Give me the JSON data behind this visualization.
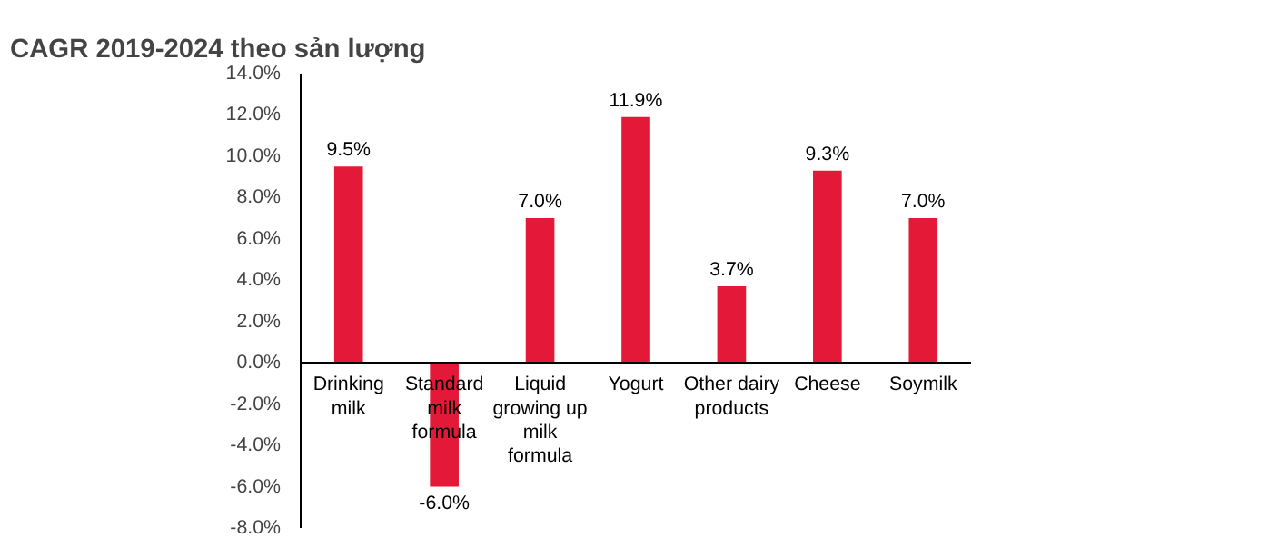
{
  "chart_data": {
    "type": "bar",
    "title": "CAGR 2019-2024 theo sản lượng",
    "categories": [
      "Drinking milk",
      "Standard milk formula",
      "Liquid growing up milk formula",
      "Yogurt",
      "Other dairy products",
      "Cheese",
      "Soymilk"
    ],
    "values": [
      9.5,
      -6.0,
      7.0,
      11.9,
      3.7,
      9.3,
      7.0
    ],
    "value_labels": [
      "9.5%",
      "-6.0%",
      "7.0%",
      "11.9%",
      "3.7%",
      "9.3%",
      "7.0%"
    ],
    "color": "#e31937",
    "ylim": [
      -8,
      14
    ],
    "yticks": [
      {
        "value": 14,
        "label": "14.0%"
      },
      {
        "value": 12,
        "label": "12.0%"
      },
      {
        "value": 10,
        "label": "10.0%"
      },
      {
        "value": 8,
        "label": "8.0%"
      },
      {
        "value": 6,
        "label": "6.0%"
      },
      {
        "value": 4,
        "label": "4.0%"
      },
      {
        "value": 2,
        "label": "2.0%"
      },
      {
        "value": 0,
        "label": "0.0%"
      },
      {
        "value": -2,
        "label": "-2.0%"
      },
      {
        "value": -4,
        "label": "-4.0%"
      },
      {
        "value": -6,
        "label": "-6.0%"
      },
      {
        "value": -8,
        "label": "-8.0%"
      }
    ],
    "grid": false
  }
}
